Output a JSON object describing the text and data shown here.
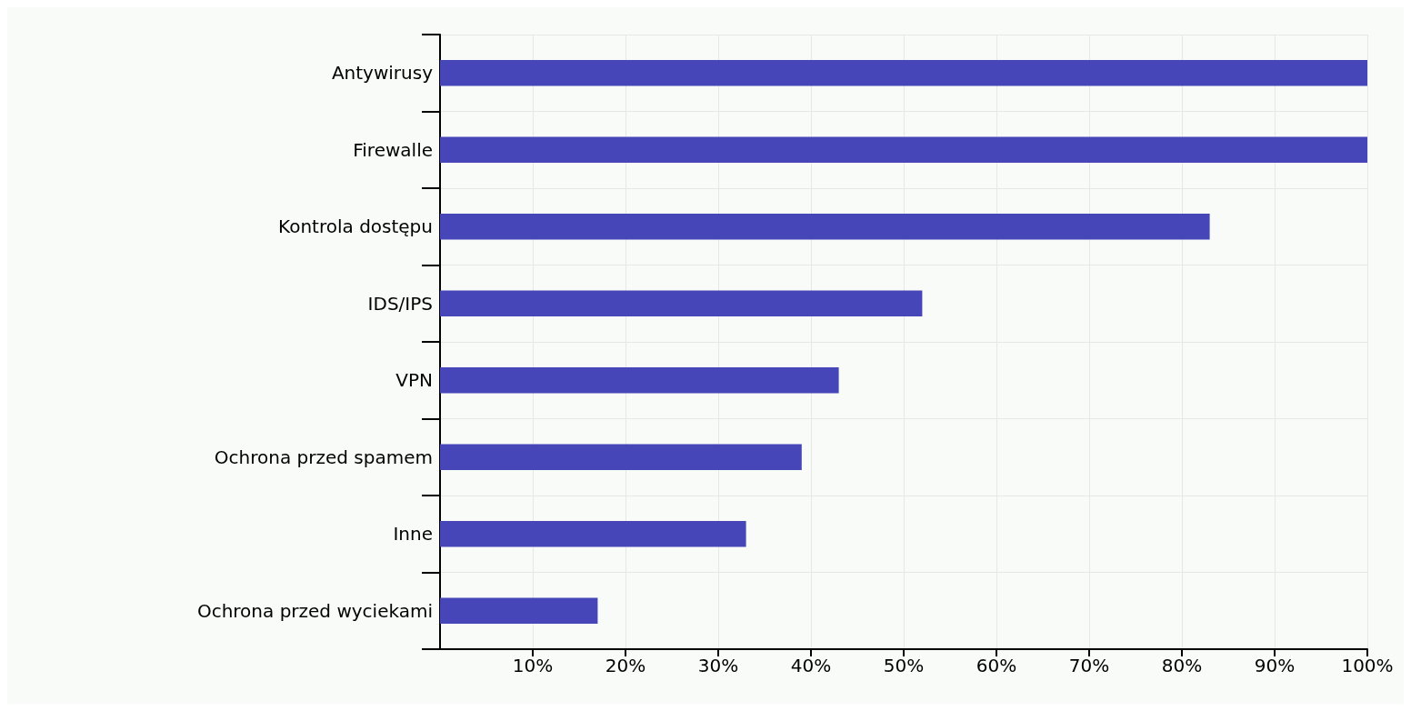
{
  "chart_data": {
    "type": "bar",
    "orientation": "horizontal",
    "categories": [
      "Antywirusy",
      "Firewalle",
      "Kontrola dostępu",
      "IDS/IPS",
      "VPN",
      "Ochrona przed spamem",
      "Inne",
      "Ochrona przed wyciekami"
    ],
    "values": [
      100,
      100,
      83,
      52,
      43,
      39,
      33,
      17
    ],
    "color": "#4646b8",
    "xlim": [
      0,
      100
    ],
    "xticks": [
      {
        "value": 10,
        "label": "10%"
      },
      {
        "value": 20,
        "label": "20%"
      },
      {
        "value": 30,
        "label": "30%"
      },
      {
        "value": 40,
        "label": "40%"
      },
      {
        "value": 50,
        "label": "50%"
      },
      {
        "value": 60,
        "label": "60%"
      },
      {
        "value": 70,
        "label": "70%"
      },
      {
        "value": 80,
        "label": "80%"
      },
      {
        "value": 90,
        "label": "90%"
      },
      {
        "value": 100,
        "label": "100%"
      }
    ],
    "grid": true
  }
}
